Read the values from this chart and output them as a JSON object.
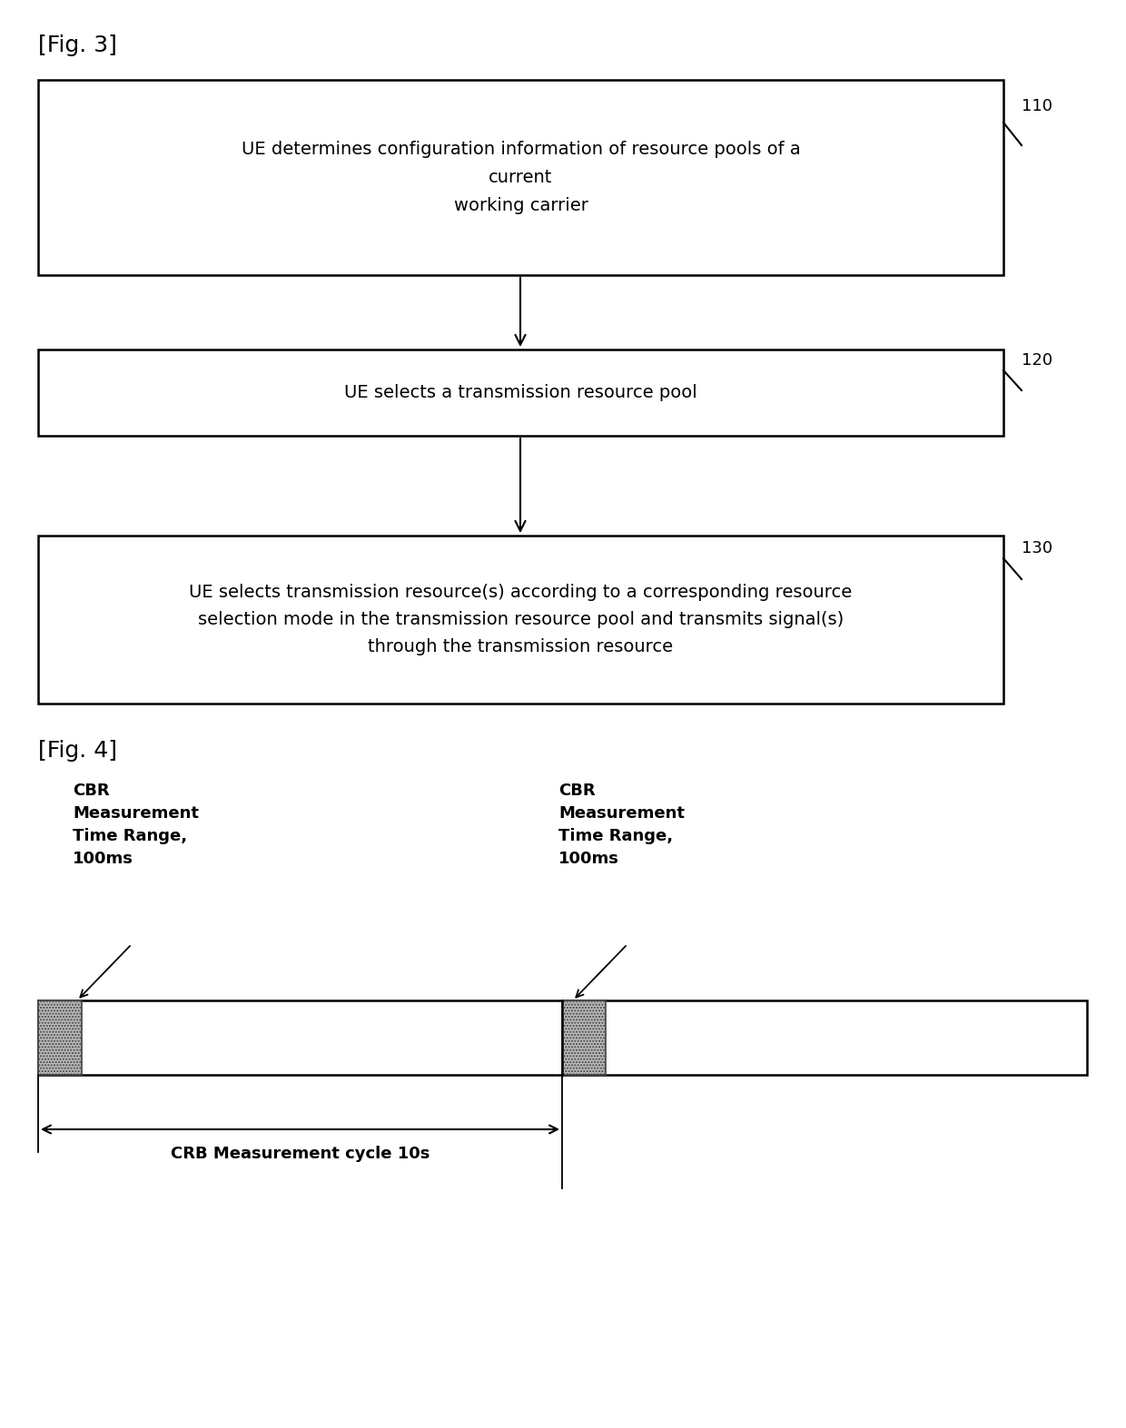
{
  "fig_label_3": "[Fig. 3]",
  "fig_label_4": "[Fig. 4]",
  "box1_text": "UE determines configuration information of resource pools of a\ncurrent\nworking carrier",
  "box1_label": "110",
  "box2_text": "UE selects a transmission resource pool",
  "box2_label": "120",
  "box3_text": "UE selects transmission resource(s) according to a corresponding resource\nselection mode in the transmission resource pool and transmits signal(s)\nthrough the transmission resource",
  "box3_label": "130",
  "cbr_label1": "CBR\nMeasurement\nTime Range,\n100ms",
  "cbr_label2": "CBR\nMeasurement\nTime Range,\n100ms",
  "crb_cycle_label": "CRB Measurement cycle 10s",
  "background_color": "#ffffff",
  "box_edge_color": "#000000",
  "text_color": "#000000",
  "font_size_fig_label": 18,
  "font_size_box": 14,
  "font_size_ref": 13,
  "font_size_cbr": 13,
  "font_size_cycle": 13
}
